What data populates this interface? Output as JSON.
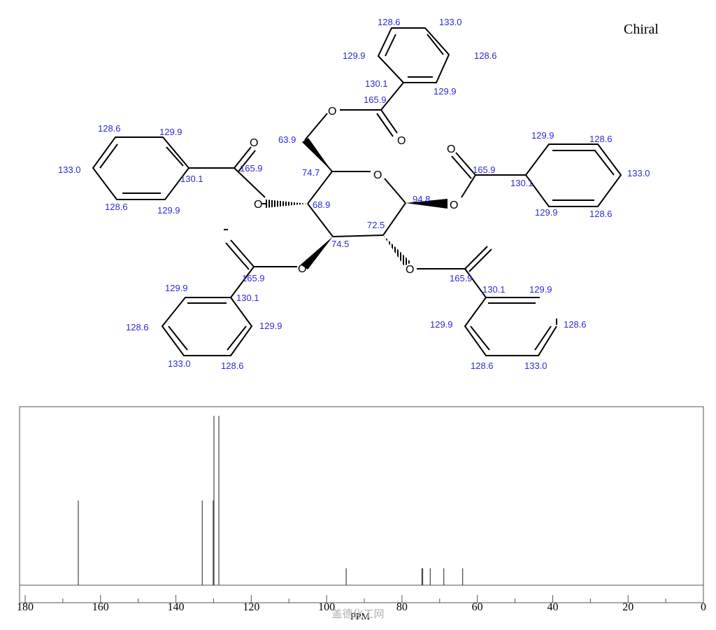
{
  "molecule": {
    "chiral_label": "Chiral",
    "atom_oxygen": "O",
    "shift_labels": [
      "128.6",
      "133.0",
      "129.9",
      "128.6",
      "130.1",
      "129.9",
      "165.9",
      "128.6",
      "129.9",
      "133.0",
      "130.1",
      "165.9",
      "128.6",
      "129.9",
      "129.9",
      "128.6",
      "165.9",
      "130.1",
      "133.0",
      "129.9",
      "128.6",
      "63.9",
      "74.7",
      "68.9",
      "94.8",
      "72.5",
      "74.5",
      "129.9",
      "130.1",
      "165.9",
      "128.6",
      "129.9",
      "133.0",
      "128.6",
      "165.9",
      "130.1",
      "129.9",
      "128.6",
      "129.9",
      "128.6",
      "133.0"
    ]
  },
  "chart_data": {
    "type": "bar",
    "xlabel": "PPM",
    "xlim": [
      180,
      0
    ],
    "x_ticks": [
      "180",
      "160",
      "140",
      "120",
      "100",
      "80",
      "60",
      "40",
      "20",
      "0"
    ],
    "grid": false,
    "peaks": [
      {
        "ppm": 165.9,
        "intensity": 0.5
      },
      {
        "ppm": 133.0,
        "intensity": 0.5
      },
      {
        "ppm": 130.1,
        "intensity": 0.5
      },
      {
        "ppm": 129.9,
        "intensity": 1.0
      },
      {
        "ppm": 128.6,
        "intensity": 1.0
      },
      {
        "ppm": 94.8,
        "intensity": 0.1
      },
      {
        "ppm": 74.7,
        "intensity": 0.1
      },
      {
        "ppm": 74.5,
        "intensity": 0.1
      },
      {
        "ppm": 72.5,
        "intensity": 0.1
      },
      {
        "ppm": 68.9,
        "intensity": 0.1
      },
      {
        "ppm": 63.9,
        "intensity": 0.1
      }
    ]
  },
  "watermark": "盖德化工网"
}
